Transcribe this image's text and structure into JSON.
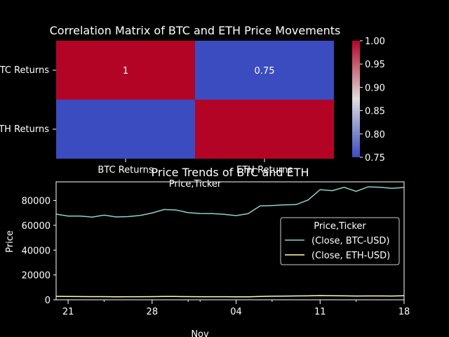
{
  "chart_data": [
    {
      "type": "heatmap",
      "title": "Correlation Matrix of BTC and ETH Price Movements",
      "row_labels": [
        "BTC Returns",
        "ETH Returns"
      ],
      "col_labels": [
        "BTC Returns",
        "ETH Returns"
      ],
      "xlabel": "Price,Ticker",
      "annotations": [
        "1",
        "0.75"
      ],
      "values": [
        [
          1.0,
          0.75
        ],
        [
          0.75,
          1.0
        ]
      ],
      "colorbar": {
        "min": 0.75,
        "max": 1.0,
        "ticks": [
          "0.75",
          "0.80",
          "0.85",
          "0.90",
          "0.95",
          "1.00"
        ]
      },
      "colors": {
        "low": "#3b4cc0",
        "high": "#b40426"
      }
    },
    {
      "type": "line",
      "title": "Price Trends of BTC and ETH",
      "ylabel": "Price",
      "xlabel": "Nov",
      "ylim": [
        0,
        95000
      ],
      "yticks": [
        "0",
        "20000",
        "40000",
        "60000",
        "80000"
      ],
      "xticks": [
        "21",
        "28",
        "04",
        "11",
        "18"
      ],
      "legend": {
        "title": "Price,Ticker",
        "position": "center-right"
      },
      "x": [
        "2024-10-20",
        "2024-10-21",
        "2024-10-22",
        "2024-10-23",
        "2024-10-24",
        "2024-10-25",
        "2024-10-26",
        "2024-10-27",
        "2024-10-28",
        "2024-10-29",
        "2024-10-30",
        "2024-10-31",
        "2024-11-01",
        "2024-11-02",
        "2024-11-03",
        "2024-11-04",
        "2024-11-05",
        "2024-11-06",
        "2024-11-07",
        "2024-11-08",
        "2024-11-09",
        "2024-11-10",
        "2024-11-11",
        "2024-11-12",
        "2024-11-13",
        "2024-11-14",
        "2024-11-15",
        "2024-11-16",
        "2024-11-17",
        "2024-11-18"
      ],
      "series": [
        {
          "name": "(Close, BTC-USD)",
          "color": "#8dd3c7",
          "values": [
            69000,
            67400,
            67400,
            66600,
            68200,
            66700,
            67000,
            67900,
            69900,
            72700,
            72300,
            70200,
            69500,
            69400,
            68800,
            67800,
            69400,
            75600,
            75900,
            76500,
            76700,
            80400,
            88700,
            87900,
            90600,
            87300,
            91000,
            90600,
            89800,
            90500
          ]
        },
        {
          "name": "(Close, ETH-USD)",
          "color": "#ffffb3",
          "values": [
            2750,
            2740,
            2620,
            2520,
            2540,
            2440,
            2480,
            2510,
            2570,
            2630,
            2660,
            2520,
            2510,
            2490,
            2460,
            2420,
            2450,
            2720,
            2890,
            2960,
            3130,
            3180,
            3370,
            3240,
            3180,
            3060,
            3100,
            3100,
            3080,
            3200
          ]
        }
      ]
    }
  ]
}
